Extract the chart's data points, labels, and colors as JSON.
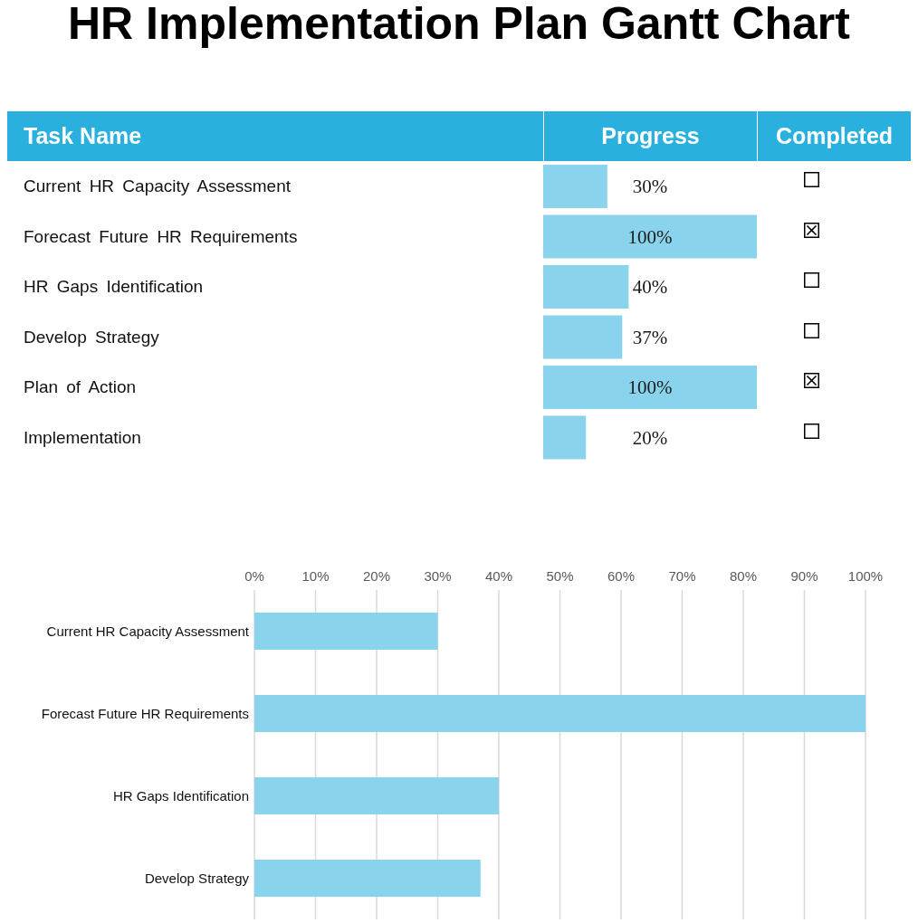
{
  "chart_data": [
    {
      "type": "bar",
      "orientation": "horizontal",
      "title": "HR Implementation Plan Gantt Chart",
      "ylabel": "Task Name",
      "xlabel": "Progress",
      "annotations": [
        "Completed"
      ],
      "categories": [
        "Current HR Capacity Assessment",
        "Forecast Future HR Requirements",
        "HR Gaps Identification",
        "Develop Strategy",
        "Plan of Action",
        "Implementation"
      ],
      "values": [
        30,
        100,
        40,
        37,
        100,
        20
      ],
      "value_labels": [
        "30%",
        "100%",
        "40%",
        "37%",
        "100%",
        "20%"
      ],
      "color": "#89d4ec"
    },
    {
      "type": "bar",
      "orientation": "horizontal",
      "categories": [
        "Current HR Capacity Assessment",
        "Forecast Future HR Requirements",
        "HR Gaps Identification",
        "Develop Strategy"
      ],
      "values": [
        30,
        100,
        40,
        37
      ],
      "color": "#89d4ec",
      "xlim": [
        0,
        100
      ],
      "xticks": [
        {
          "value": 0,
          "label": "0%"
        },
        {
          "value": 10,
          "label": "10%"
        },
        {
          "value": 20,
          "label": "20%"
        },
        {
          "value": 30,
          "label": "30%"
        },
        {
          "value": 40,
          "label": "40%"
        },
        {
          "value": 50,
          "label": "50%"
        },
        {
          "value": 60,
          "label": "60%"
        },
        {
          "value": 70,
          "label": "70%"
        },
        {
          "value": 80,
          "label": "80%"
        },
        {
          "value": 90,
          "label": "90%"
        },
        {
          "value": 100,
          "label": "100%"
        }
      ],
      "grid": "x"
    }
  ]
}
